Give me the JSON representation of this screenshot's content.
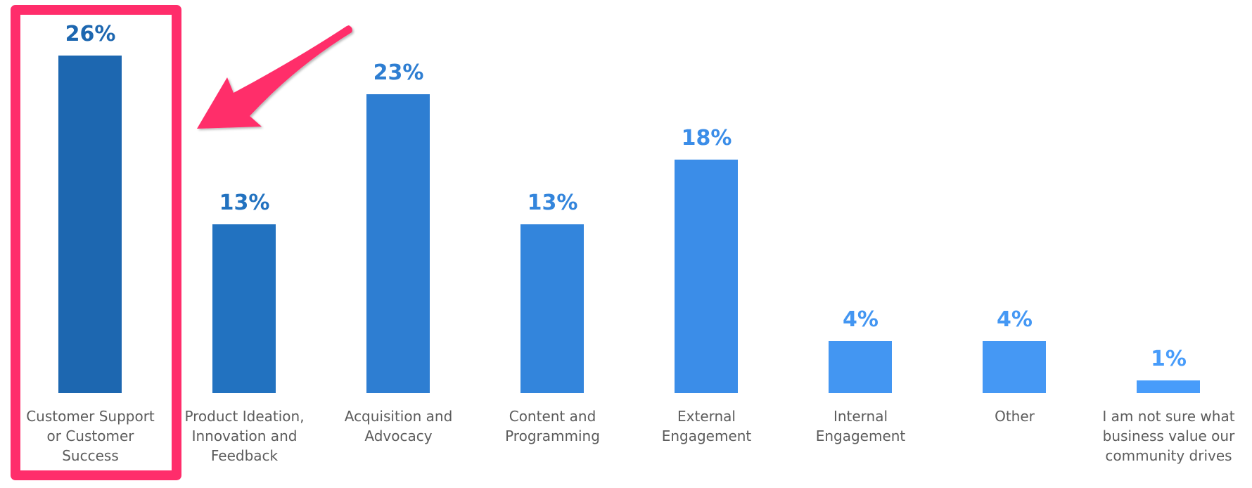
{
  "chart_data": {
    "type": "bar",
    "title": "",
    "xlabel": "",
    "ylabel": "",
    "ylim": [
      0,
      30
    ],
    "grid": false,
    "legend": null,
    "categories": [
      "Customer Support or Customer Success",
      "Product Ideation, Innovation and Feedback",
      "Acquisition and Advocacy",
      "Content and Programming",
      "External Engagement",
      "Internal Engagement",
      "Other",
      "I am not sure what business value our community drives"
    ],
    "values": [
      26,
      13,
      23,
      13,
      18,
      4,
      4,
      1
    ],
    "value_labels": [
      "26%",
      "13%",
      "23%",
      "13%",
      "18%",
      "4%",
      "4%",
      "1%"
    ],
    "unit": "%",
    "annotations": [
      {
        "type": "highlight-box",
        "target": "Customer Support or Customer Success",
        "color": "#ff2d6b"
      },
      {
        "type": "arrow",
        "points_to": "Customer Support or Customer Success",
        "color": "#ff2d6b"
      }
    ]
  },
  "bars": [
    {
      "value": 26,
      "label": "26%",
      "category_lines": [
        "Customer Support",
        "or Customer",
        "Success"
      ],
      "color": "#1d67b0"
    },
    {
      "value": 13,
      "label": "13%",
      "category_lines": [
        "Product Ideation,",
        "Innovation and",
        "Feedback"
      ],
      "color": "#2272c0"
    },
    {
      "value": 23,
      "label": "23%",
      "category_lines": [
        "Acquisition and",
        "Advocacy"
      ],
      "color": "#2e7ed2"
    },
    {
      "value": 13,
      "label": "13%",
      "category_lines": [
        "Content and",
        "Programming"
      ],
      "color": "#3385dc"
    },
    {
      "value": 18,
      "label": "18%",
      "category_lines": [
        "External",
        "Engagement"
      ],
      "color": "#3b8de8"
    },
    {
      "value": 4,
      "label": "4%",
      "category_lines": [
        "Internal",
        "Engagement"
      ],
      "color": "#4396f2"
    },
    {
      "value": 4,
      "label": "4%",
      "category_lines": [
        "Other"
      ],
      "color": "#4598f4"
    },
    {
      "value": 1,
      "label": "1%",
      "category_lines": [
        "I am not sure what",
        "business value our",
        "community drives"
      ],
      "color": "#489cfa"
    }
  ],
  "annotation": {
    "highlight_color": "#ff2d6b",
    "arrow_color": "#ff2d6b"
  },
  "colors": {
    "label_text": "#5c5c5c",
    "background": "#ffffff"
  }
}
